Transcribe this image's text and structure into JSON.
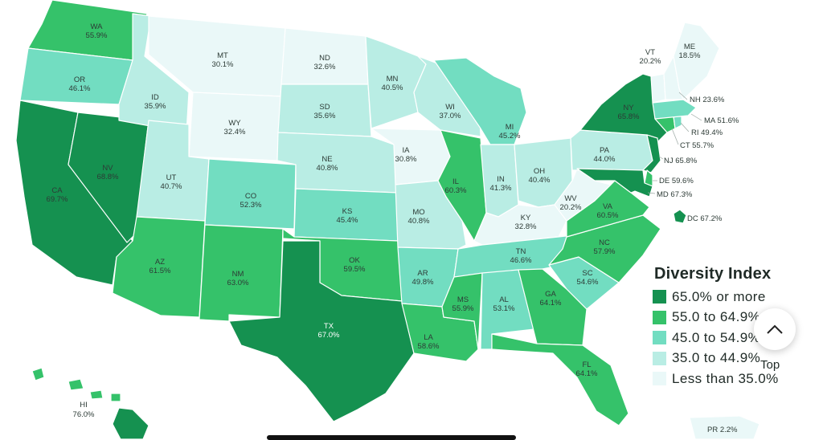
{
  "colors": {
    "bin1": "#159150",
    "bin2": "#35c26a",
    "bin3": "#72ddc1",
    "bin4": "#b9ede4",
    "bin5": "#eaf8f8"
  },
  "legend": {
    "title": "Diversity Index",
    "items": [
      {
        "label": "65.0% or more",
        "color": "#159150"
      },
      {
        "label": "55.0 to 64.9%",
        "color": "#35c26a"
      },
      {
        "label": "45.0 to 54.9%",
        "color": "#72ddc1"
      },
      {
        "label": "35.0 to 44.9%",
        "color": "#b9ede4"
      },
      {
        "label": "Less than 35.0%",
        "color": "#eaf8f8"
      }
    ]
  },
  "scroll_top": {
    "label": "Top",
    "icon": "chevron-up-icon"
  },
  "states": {
    "WA": {
      "abbr": "WA",
      "value": "55.9%",
      "bin": 2
    },
    "OR": {
      "abbr": "OR",
      "value": "46.1%",
      "bin": 3
    },
    "CA": {
      "abbr": "CA",
      "value": "69.7%",
      "bin": 1
    },
    "NV": {
      "abbr": "NV",
      "value": "68.8%",
      "bin": 1
    },
    "ID": {
      "abbr": "ID",
      "value": "35.9%",
      "bin": 4
    },
    "MT": {
      "abbr": "MT",
      "value": "30.1%",
      "bin": 5
    },
    "WY": {
      "abbr": "WY",
      "value": "32.4%",
      "bin": 5
    },
    "UT": {
      "abbr": "UT",
      "value": "40.7%",
      "bin": 4
    },
    "AZ": {
      "abbr": "AZ",
      "value": "61.5%",
      "bin": 2
    },
    "CO": {
      "abbr": "CO",
      "value": "52.3%",
      "bin": 3
    },
    "NM": {
      "abbr": "NM",
      "value": "63.0%",
      "bin": 2
    },
    "ND": {
      "abbr": "ND",
      "value": "32.6%",
      "bin": 5
    },
    "SD": {
      "abbr": "SD",
      "value": "35.6%",
      "bin": 4
    },
    "NE": {
      "abbr": "NE",
      "value": "40.8%",
      "bin": 4
    },
    "KS": {
      "abbr": "KS",
      "value": "45.4%",
      "bin": 3
    },
    "OK": {
      "abbr": "OK",
      "value": "59.5%",
      "bin": 2
    },
    "TX": {
      "abbr": "TX",
      "value": "67.0%",
      "bin": 1
    },
    "MN": {
      "abbr": "MN",
      "value": "40.5%",
      "bin": 4
    },
    "IA": {
      "abbr": "IA",
      "value": "30.8%",
      "bin": 5
    },
    "MO": {
      "abbr": "MO",
      "value": "40.8%",
      "bin": 4
    },
    "AR": {
      "abbr": "AR",
      "value": "49.8%",
      "bin": 3
    },
    "LA": {
      "abbr": "LA",
      "value": "58.6%",
      "bin": 2
    },
    "WI": {
      "abbr": "WI",
      "value": "37.0%",
      "bin": 4
    },
    "IL": {
      "abbr": "IL",
      "value": "60.3%",
      "bin": 2
    },
    "MI": {
      "abbr": "MI",
      "value": "45.2%",
      "bin": 3
    },
    "IN": {
      "abbr": "IN",
      "value": "41.3%",
      "bin": 4
    },
    "OH": {
      "abbr": "OH",
      "value": "40.4%",
      "bin": 4
    },
    "KY": {
      "abbr": "KY",
      "value": "32.8%",
      "bin": 5
    },
    "TN": {
      "abbr": "TN",
      "value": "46.6%",
      "bin": 3
    },
    "MS": {
      "abbr": "MS",
      "value": "55.9%",
      "bin": 2
    },
    "AL": {
      "abbr": "AL",
      "value": "53.1%",
      "bin": 3
    },
    "GA": {
      "abbr": "GA",
      "value": "64.1%",
      "bin": 2
    },
    "FL": {
      "abbr": "FL",
      "value": "64.1%",
      "bin": 2
    },
    "SC": {
      "abbr": "SC",
      "value": "54.6%",
      "bin": 3
    },
    "NC": {
      "abbr": "NC",
      "value": "57.9%",
      "bin": 2
    },
    "VA": {
      "abbr": "VA",
      "value": "60.5%",
      "bin": 2
    },
    "WV": {
      "abbr": "WV",
      "value": "20.2%",
      "bin": 5
    },
    "PA": {
      "abbr": "PA",
      "value": "44.0%",
      "bin": 4
    },
    "NY": {
      "abbr": "NY",
      "value": "65.8%",
      "bin": 1
    },
    "VT": {
      "abbr": "VT",
      "value": "20.2%",
      "bin": 5
    },
    "ME": {
      "abbr": "ME",
      "value": "18.5%",
      "bin": 5
    },
    "NH": {
      "abbr": "NH",
      "value": "23.6%",
      "bin": 5
    },
    "MA": {
      "abbr": "MA",
      "value": "51.6%",
      "bin": 3
    },
    "RI": {
      "abbr": "RI",
      "value": "49.4%",
      "bin": 3
    },
    "CT": {
      "abbr": "CT",
      "value": "55.7%",
      "bin": 2
    },
    "NJ": {
      "abbr": "NJ",
      "value": "65.8%",
      "bin": 1
    },
    "DE": {
      "abbr": "DE",
      "value": "59.6%",
      "bin": 2
    },
    "MD": {
      "abbr": "MD",
      "value": "67.3%",
      "bin": 1
    },
    "DC": {
      "abbr": "DC",
      "value": "67.2%",
      "bin": 1
    },
    "AK": {
      "abbr": "",
      "value": "",
      "bin": 2
    },
    "HI": {
      "abbr": "HI",
      "value": "76.0%",
      "bin": 1
    },
    "PR": {
      "abbr": "PR",
      "value": "2.2%",
      "bin": 5
    }
  }
}
